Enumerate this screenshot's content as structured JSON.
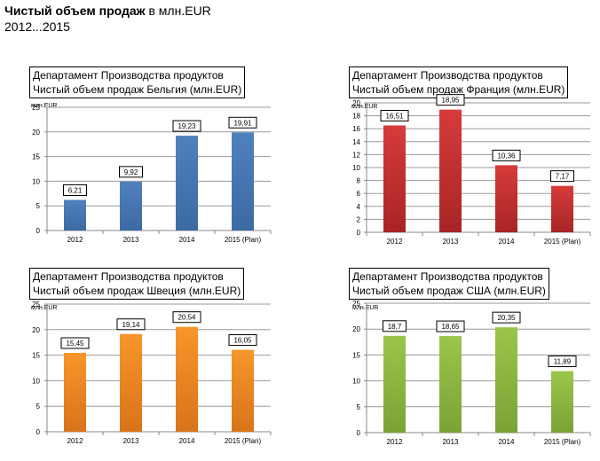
{
  "header": {
    "title_bold": "Чистый объем продаж",
    "title_rest": " в млн.EUR",
    "years": "2012...2015"
  },
  "chart_data": [
    {
      "type": "bar",
      "title": [
        "Департамент Производства продуктов",
        "Чистый объем продаж Бельгия (млн.EUR)"
      ],
      "ylabel": "млн.EUR",
      "categories": [
        "2012",
        "2013",
        "2014",
        "2015 (Plan)"
      ],
      "values": [
        6.21,
        9.92,
        19.23,
        19.91
      ],
      "labels": [
        "6,21",
        "9,92",
        "19,23",
        "19,91"
      ],
      "ylim": [
        0,
        25
      ],
      "yticks": [
        0,
        5,
        10,
        15,
        20,
        25
      ],
      "color": "#4f81bd",
      "color_dark": "#3c6aa3"
    },
    {
      "type": "bar",
      "title": [
        "Департамент Производства продуктов",
        "Чистый объем продаж Франция (млн.EUR)"
      ],
      "ylabel": "млн.EUR",
      "categories": [
        "2012",
        "2013",
        "2014",
        "2015 (Plan)"
      ],
      "values": [
        16.51,
        18.95,
        10.36,
        7.17
      ],
      "labels": [
        "16,51",
        "18,95",
        "10,36",
        "7,17"
      ],
      "ylim": [
        0,
        20
      ],
      "yticks": [
        0,
        2,
        4,
        6,
        8,
        10,
        12,
        14,
        16,
        18,
        20
      ],
      "color": "#d63b3b",
      "color_dark": "#a82525"
    },
    {
      "type": "bar",
      "title": [
        "Департамент Производства продуктов",
        "Чистый объем продаж Швеция (млн.EUR)"
      ],
      "ylabel": "млн.EUR",
      "categories": [
        "2012",
        "2013",
        "2014",
        "2015 (Plan)"
      ],
      "values": [
        15.45,
        19.14,
        20.54,
        16.05
      ],
      "labels": [
        "15,45",
        "19,14",
        "20,54",
        "16,05"
      ],
      "ylim": [
        0,
        25
      ],
      "yticks": [
        0,
        5,
        10,
        15,
        20,
        25
      ],
      "color": "#f7962a",
      "color_dark": "#d9731a"
    },
    {
      "type": "bar",
      "title": [
        "Департамент Производства продуктов",
        "Чистый объем продаж США (млн.EUR)"
      ],
      "ylabel": "млн.EUR",
      "categories": [
        "2012",
        "2013",
        "2014",
        "2015 (Plan)"
      ],
      "values": [
        18.7,
        18.65,
        20.35,
        11.89
      ],
      "labels": [
        "18,7",
        "18,65",
        "20,35",
        "11,89"
      ],
      "ylim": [
        0,
        25
      ],
      "yticks": [
        0,
        5,
        10,
        15,
        20,
        25
      ],
      "color": "#9bc54a",
      "color_dark": "#7aa335"
    }
  ]
}
